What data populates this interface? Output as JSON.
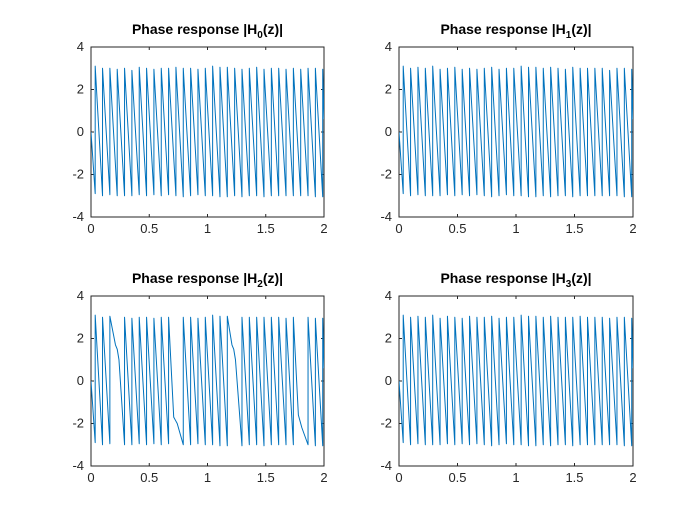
{
  "chart_data": [
    {
      "type": "line",
      "title": {
        "prefix": "Phase response |H",
        "subscript": "0",
        "suffix": "(z)|"
      },
      "xlabel": "",
      "ylabel": "",
      "xlim": [
        0,
        2
      ],
      "ylim": [
        -4,
        4
      ],
      "xticks": [
        "0",
        "0.5",
        "1",
        "1.5",
        "2"
      ],
      "yticks": [
        "4",
        "2",
        "0",
        "-2",
        "-4"
      ],
      "grid": false,
      "color": "#0072BD",
      "series": [
        {
          "x": [
            0,
            0.036,
            0.036,
            0.099,
            0.099,
            0.162,
            0.162,
            0.225,
            0.225,
            0.288,
            0.288,
            0.351,
            0.351,
            0.414,
            0.414,
            0.477,
            0.477,
            0.54,
            0.54,
            0.603,
            0.603,
            0.666,
            0.666,
            0.729,
            0.729,
            0.792,
            0.792,
            0.855,
            0.855,
            0.918,
            0.918,
            0.981,
            0.981,
            1.044,
            1.044,
            1.107,
            1.107,
            1.17,
            1.17,
            1.233,
            1.233,
            1.296,
            1.296,
            1.359,
            1.359,
            1.422,
            1.422,
            1.485,
            1.485,
            1.548,
            1.548,
            1.611,
            1.611,
            1.674,
            1.674,
            1.737,
            1.737,
            1.8,
            1.8,
            1.863,
            1.863,
            1.926,
            1.926,
            1.989,
            1.989,
            2
          ],
          "y": [
            0,
            -2.9,
            3.1,
            -3.0,
            3.0,
            -2.95,
            3.0,
            -3.0,
            2.95,
            -3.0,
            3.0,
            -3.0,
            2.9,
            -2.95,
            3.05,
            -3.0,
            3.0,
            -2.95,
            2.95,
            -3.0,
            3.0,
            -2.95,
            3.0,
            -3.0,
            3.05,
            -3.05,
            3.0,
            -3.0,
            3.0,
            -2.95,
            2.95,
            -3.0,
            3.0,
            -3.0,
            3.1,
            -3.05,
            3.05,
            -3.05,
            3.05,
            -3.0,
            3.0,
            -3.05,
            2.95,
            -3.0,
            3.0,
            -3.0,
            3.05,
            -3.05,
            2.95,
            -3.0,
            3.0,
            -3.0,
            3.0,
            -3.0,
            2.95,
            -3.0,
            3.0,
            -3.0,
            2.95,
            -3.0,
            3.0,
            -3.05,
            3.0,
            -3.05,
            2.95,
            0.6
          ]
        }
      ]
    },
    {
      "type": "line",
      "title": {
        "prefix": "Phase response |H",
        "subscript": "1",
        "suffix": "(z)|"
      },
      "xlabel": "",
      "ylabel": "",
      "xlim": [
        0,
        2
      ],
      "ylim": [
        -4,
        4
      ],
      "xticks": [
        "0",
        "0.5",
        "1",
        "1.5",
        "2"
      ],
      "yticks": [
        "4",
        "2",
        "0",
        "-2",
        "-4"
      ],
      "grid": false,
      "color": "#0072BD",
      "series": [
        {
          "x": [
            0,
            0.036,
            0.036,
            0.099,
            0.099,
            0.162,
            0.162,
            0.225,
            0.225,
            0.288,
            0.288,
            0.351,
            0.351,
            0.414,
            0.414,
            0.477,
            0.477,
            0.54,
            0.54,
            0.603,
            0.603,
            0.666,
            0.666,
            0.729,
            0.729,
            0.792,
            0.792,
            0.855,
            0.855,
            0.918,
            0.918,
            0.981,
            0.981,
            1.044,
            1.044,
            1.107,
            1.107,
            1.17,
            1.17,
            1.233,
            1.233,
            1.296,
            1.296,
            1.359,
            1.359,
            1.422,
            1.422,
            1.485,
            1.485,
            1.548,
            1.548,
            1.611,
            1.611,
            1.674,
            1.674,
            1.737,
            1.737,
            1.8,
            1.8,
            1.863,
            1.863,
            1.926,
            1.926,
            1.989,
            1.989,
            2
          ],
          "y": [
            0,
            -2.9,
            3.1,
            -3.0,
            3.0,
            -2.95,
            3.05,
            -3.0,
            3.0,
            -3.0,
            3.1,
            -3.0,
            2.95,
            -2.95,
            3.0,
            -3.0,
            3.05,
            -2.95,
            2.95,
            -3.0,
            3.0,
            -2.95,
            2.95,
            -3.0,
            3.0,
            -3.05,
            3.05,
            -3.0,
            2.95,
            -2.95,
            3.0,
            -3.0,
            3.0,
            -3.0,
            3.1,
            -3.05,
            3.05,
            -3.05,
            3.05,
            -3.0,
            3.0,
            -3.05,
            3.05,
            -3.0,
            3.0,
            -3.0,
            2.95,
            -3.05,
            3.05,
            -3.0,
            3.0,
            -3.0,
            3.0,
            -3.0,
            3.0,
            -3.0,
            3.0,
            -3.0,
            2.9,
            -3.0,
            3.0,
            -3.05,
            3.0,
            -3.05,
            2.95,
            0.6
          ]
        }
      ]
    },
    {
      "type": "line",
      "title": {
        "prefix": "Phase response |H",
        "subscript": "2",
        "suffix": "(z)|"
      },
      "xlabel": "",
      "ylabel": "",
      "xlim": [
        0,
        2
      ],
      "ylim": [
        -4,
        4
      ],
      "xticks": [
        "0",
        "0.5",
        "1",
        "1.5",
        "2"
      ],
      "yticks": [
        "4",
        "2",
        "0",
        "-2",
        "-4"
      ],
      "grid": false,
      "color": "#0072BD",
      "series": [
        {
          "x": [
            0,
            0.036,
            0.036,
            0.099,
            0.099,
            0.162,
            0.162,
            0.21,
            0.225,
            0.24,
            0.288,
            0.288,
            0.351,
            0.351,
            0.414,
            0.414,
            0.477,
            0.477,
            0.54,
            0.54,
            0.603,
            0.603,
            0.666,
            0.666,
            0.71,
            0.725,
            0.74,
            0.792,
            0.792,
            0.855,
            0.855,
            0.918,
            0.918,
            0.981,
            0.981,
            1.044,
            1.044,
            1.107,
            1.107,
            1.17,
            1.17,
            1.21,
            1.225,
            1.24,
            1.296,
            1.296,
            1.359,
            1.359,
            1.422,
            1.422,
            1.485,
            1.485,
            1.548,
            1.548,
            1.611,
            1.611,
            1.674,
            1.674,
            1.737,
            1.737,
            1.78,
            1.8,
            1.81,
            1.863,
            1.863,
            1.926,
            1.926,
            1.989,
            1.989,
            2
          ],
          "y": [
            0,
            -2.9,
            3.1,
            -3.0,
            3.0,
            -2.95,
            3.05,
            1.7,
            1.5,
            1.0,
            -3.0,
            3.0,
            -3.0,
            2.95,
            -2.95,
            3.0,
            -3.0,
            3.0,
            -2.95,
            2.95,
            -3.0,
            3.0,
            -2.95,
            3.0,
            -1.7,
            -1.85,
            -2.0,
            -3.0,
            3.0,
            -3.0,
            3.0,
            -2.95,
            2.95,
            -3.0,
            3.0,
            -3.0,
            3.1,
            -3.05,
            3.05,
            -3.05,
            3.05,
            1.7,
            1.5,
            1.0,
            -3.05,
            3.0,
            -3.0,
            3.0,
            -3.0,
            3.0,
            -3.05,
            3.0,
            -3.0,
            3.0,
            -3.0,
            3.0,
            -3.0,
            2.95,
            -3.0,
            3.0,
            -1.6,
            -2.0,
            -2.2,
            -3.0,
            3.0,
            -3.05,
            2.95,
            -3.05,
            2.95,
            0.6
          ]
        }
      ]
    },
    {
      "type": "line",
      "title": {
        "prefix": "Phase response |H",
        "subscript": "3",
        "suffix": "(z)|"
      },
      "xlabel": "",
      "ylabel": "",
      "xlim": [
        0,
        2
      ],
      "ylim": [
        -4,
        4
      ],
      "xticks": [
        "0",
        "0.5",
        "1",
        "1.5",
        "2"
      ],
      "yticks": [
        "4",
        "2",
        "0",
        "-2",
        "-4"
      ],
      "grid": false,
      "color": "#0072BD",
      "series": [
        {
          "x": [
            0,
            0.036,
            0.036,
            0.099,
            0.099,
            0.162,
            0.162,
            0.225,
            0.225,
            0.288,
            0.288,
            0.351,
            0.351,
            0.414,
            0.414,
            0.477,
            0.477,
            0.54,
            0.54,
            0.603,
            0.603,
            0.666,
            0.666,
            0.729,
            0.729,
            0.792,
            0.792,
            0.855,
            0.855,
            0.918,
            0.918,
            0.981,
            0.981,
            1.044,
            1.044,
            1.107,
            1.107,
            1.17,
            1.17,
            1.233,
            1.233,
            1.296,
            1.296,
            1.359,
            1.359,
            1.422,
            1.422,
            1.485,
            1.485,
            1.548,
            1.548,
            1.611,
            1.611,
            1.674,
            1.674,
            1.737,
            1.737,
            1.8,
            1.8,
            1.863,
            1.863,
            1.926,
            1.926,
            1.989,
            1.989,
            2
          ],
          "y": [
            0,
            -2.9,
            3.1,
            -3.0,
            3.0,
            -2.95,
            3.05,
            -3.0,
            3.0,
            -3.0,
            3.1,
            -3.0,
            2.95,
            -2.95,
            3.05,
            -3.0,
            3.0,
            -2.95,
            2.95,
            -3.0,
            3.05,
            -2.95,
            3.0,
            -3.0,
            3.0,
            -3.05,
            3.05,
            -3.0,
            2.95,
            -2.95,
            3.0,
            -3.0,
            3.0,
            -3.0,
            3.1,
            -3.05,
            3.05,
            -3.05,
            3.05,
            -3.0,
            3.0,
            -3.05,
            3.05,
            -3.0,
            3.0,
            -3.0,
            3.0,
            -3.05,
            3.0,
            -3.0,
            3.05,
            -3.0,
            3.0,
            -3.0,
            3.0,
            -3.0,
            3.0,
            -3.0,
            2.95,
            -3.0,
            3.0,
            -3.05,
            3.0,
            -3.05,
            2.95,
            0.6
          ]
        }
      ]
    }
  ]
}
